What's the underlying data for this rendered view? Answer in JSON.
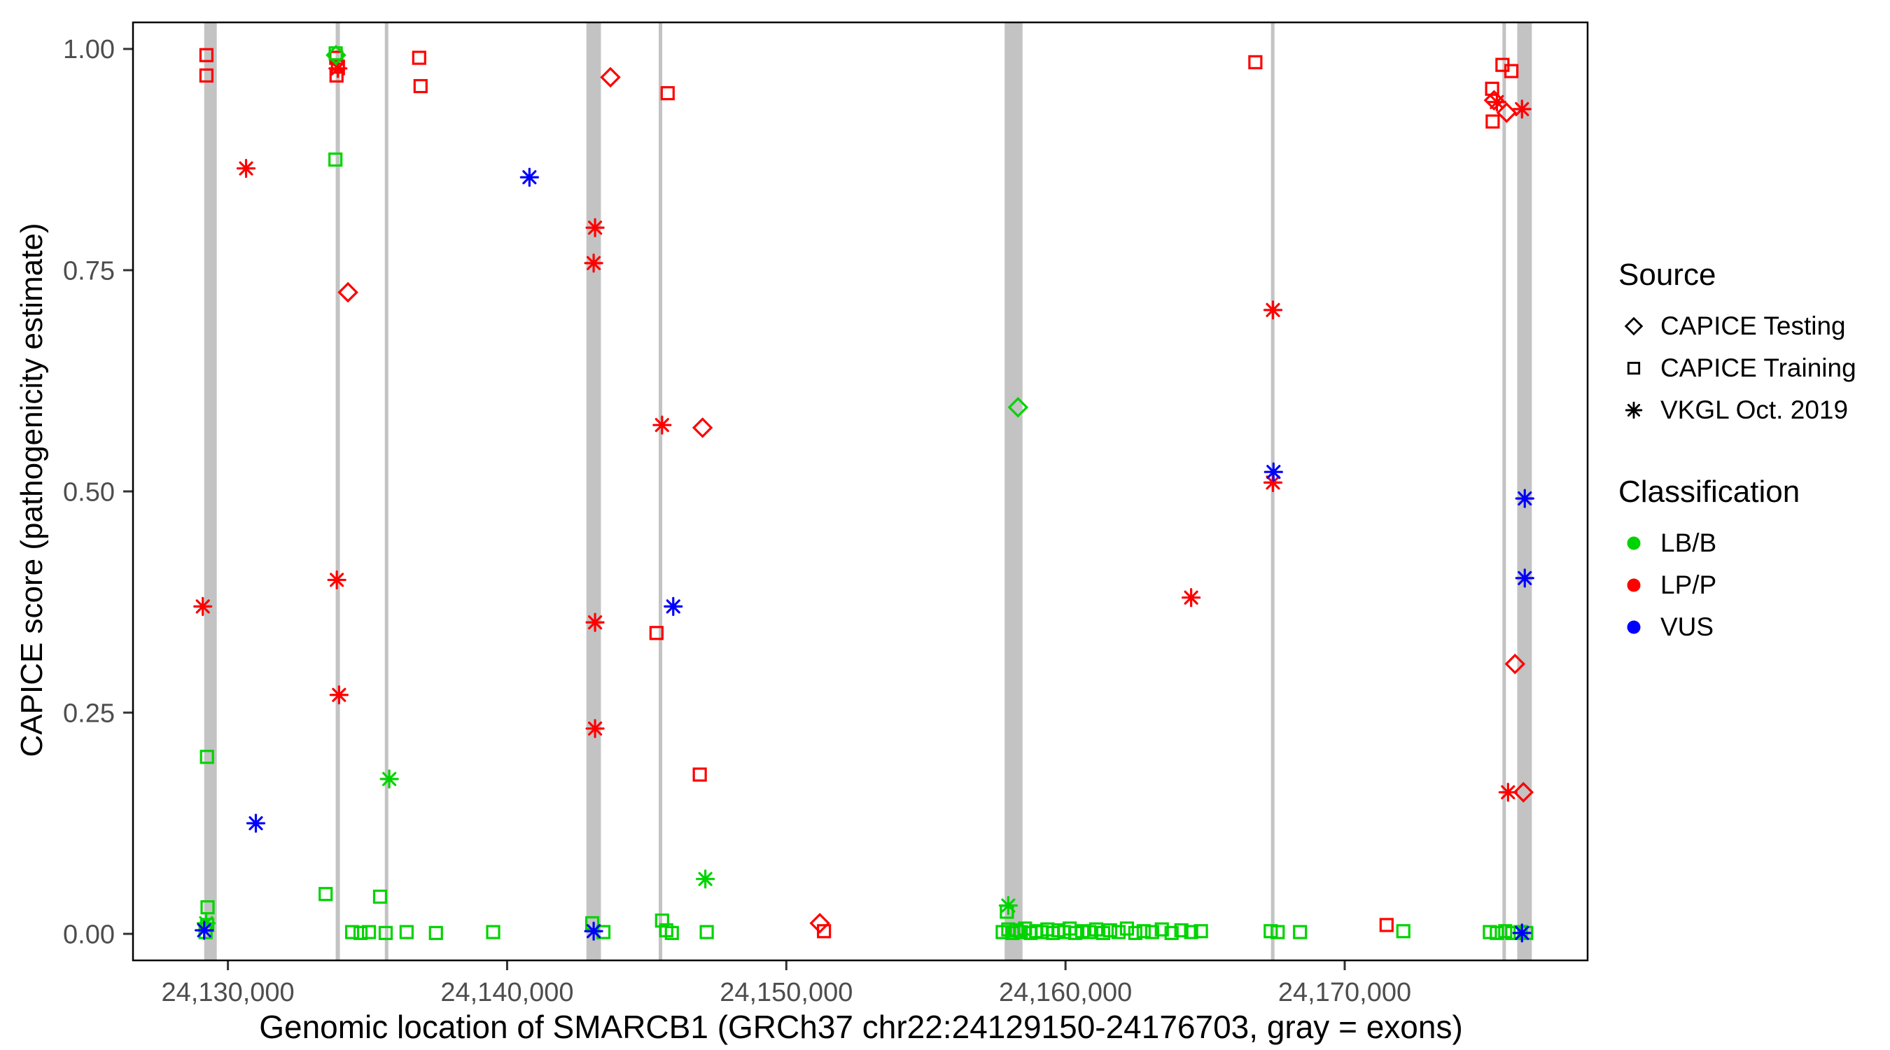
{
  "chart_data": {
    "type": "scatter",
    "title": "",
    "xlabel": "Genomic location of SMARCB1 (GRCh37 chr22:24129150-24176703, gray = exons)",
    "ylabel": "CAPICE score (pathogenicity estimate)",
    "xlim": [
      24126600,
      24178700
    ],
    "ylim": [
      -0.03,
      1.03
    ],
    "grid": false,
    "panel_border_color": "#000000",
    "exon_color": "#c3c3c3",
    "x_ticks": [
      {
        "value": 24130000,
        "label": "24,130,000"
      },
      {
        "value": 24140000,
        "label": "24,140,000"
      },
      {
        "value": 24150000,
        "label": "24,150,000"
      },
      {
        "value": 24160000,
        "label": "24,160,000"
      },
      {
        "value": 24170000,
        "label": "24,170,000"
      }
    ],
    "y_ticks": [
      {
        "value": 0.0,
        "label": "0.00"
      },
      {
        "value": 0.25,
        "label": "0.25"
      },
      {
        "value": 0.5,
        "label": "0.50"
      },
      {
        "value": 0.75,
        "label": "0.75"
      },
      {
        "value": 1.0,
        "label": "1.00"
      }
    ],
    "exons": [
      [
        24129150,
        24129600
      ],
      [
        24133860,
        24134010
      ],
      [
        24135620,
        24135730
      ],
      [
        24142840,
        24143360
      ],
      [
        24145430,
        24145540
      ],
      [
        24157820,
        24158460
      ],
      [
        24167360,
        24167470
      ],
      [
        24175650,
        24175760
      ],
      [
        24176180,
        24176703
      ]
    ],
    "series": [
      {
        "name": "LP/P - CAPICE Testing",
        "classification": "LP/P",
        "source": "CAPICE Testing",
        "shape": "diamond",
        "color": "#ff0000",
        "points": [
          [
            24134300,
            0.725
          ],
          [
            24143700,
            0.968
          ],
          [
            24147000,
            0.572
          ],
          [
            24151200,
            0.012
          ],
          [
            24175350,
            0.942
          ],
          [
            24175800,
            0.928
          ],
          [
            24176100,
            0.305
          ],
          [
            24176400,
            0.16
          ]
        ]
      },
      {
        "name": "LP/P - CAPICE Training",
        "classification": "LP/P",
        "source": "CAPICE Training",
        "shape": "square",
        "color": "#ff0000",
        "points": [
          [
            24129230,
            0.993
          ],
          [
            24129230,
            0.97
          ],
          [
            24133880,
            0.99
          ],
          [
            24133940,
            0.98
          ],
          [
            24133890,
            0.97
          ],
          [
            24136850,
            0.99
          ],
          [
            24136900,
            0.958
          ],
          [
            24145750,
            0.95
          ],
          [
            24145350,
            0.34
          ],
          [
            24146900,
            0.18
          ],
          [
            24151350,
            0.003
          ],
          [
            24166800,
            0.985
          ],
          [
            24171500,
            0.01
          ],
          [
            24175280,
            0.955
          ],
          [
            24175650,
            0.982
          ],
          [
            24175300,
            0.918
          ],
          [
            24175970,
            0.975
          ]
        ]
      },
      {
        "name": "LP/P - VKGL Oct. 2019",
        "classification": "LP/P",
        "source": "VKGL Oct. 2019",
        "shape": "asterisk",
        "color": "#ff0000",
        "points": [
          [
            24130650,
            0.865
          ],
          [
            24129100,
            0.37
          ],
          [
            24133900,
            0.4
          ],
          [
            24133980,
            0.27
          ],
          [
            24133940,
            0.978
          ],
          [
            24143150,
            0.798
          ],
          [
            24143100,
            0.758
          ],
          [
            24143150,
            0.352
          ],
          [
            24143150,
            0.232
          ],
          [
            24145550,
            0.575
          ],
          [
            24164500,
            0.38
          ],
          [
            24167430,
            0.705
          ],
          [
            24167430,
            0.51
          ],
          [
            24175450,
            0.94
          ],
          [
            24176350,
            0.932
          ],
          [
            24175850,
            0.16
          ]
        ]
      },
      {
        "name": "LB/B - CAPICE Testing",
        "classification": "LB/B",
        "source": "CAPICE Testing",
        "shape": "diamond",
        "color": "#00d400",
        "points": [
          [
            24158300,
            0.595
          ],
          [
            24133870,
            0.993
          ]
        ]
      },
      {
        "name": "LB/B - CAPICE Training",
        "classification": "LB/B",
        "source": "CAPICE Training",
        "shape": "square",
        "color": "#00d400",
        "points": [
          [
            24129250,
            0.2
          ],
          [
            24129270,
            0.03
          ],
          [
            24129260,
            0.01
          ],
          [
            24129200,
            0.002
          ],
          [
            24133500,
            0.045
          ],
          [
            24133850,
            0.875
          ],
          [
            24133860,
            0.995
          ],
          [
            24134450,
            0.002
          ],
          [
            24134750,
            0.001
          ],
          [
            24135050,
            0.002
          ],
          [
            24135450,
            0.042
          ],
          [
            24135650,
            0.001
          ],
          [
            24136400,
            0.002
          ],
          [
            24137450,
            0.001
          ],
          [
            24139500,
            0.002
          ],
          [
            24143050,
            0.012
          ],
          [
            24143450,
            0.002
          ],
          [
            24145550,
            0.015
          ],
          [
            24145700,
            0.004
          ],
          [
            24145900,
            0.001
          ],
          [
            24147150,
            0.002
          ],
          [
            24157750,
            0.002
          ],
          [
            24157900,
            0.025
          ],
          [
            24157950,
            0.005
          ],
          [
            24158100,
            0.001
          ],
          [
            24158250,
            0.004
          ],
          [
            24158400,
            0.002
          ],
          [
            24158550,
            0.006
          ],
          [
            24158750,
            0.001
          ],
          [
            24158950,
            0.003
          ],
          [
            24159150,
            0.002
          ],
          [
            24159350,
            0.005
          ],
          [
            24159550,
            0.001
          ],
          [
            24159750,
            0.004
          ],
          [
            24159950,
            0.002
          ],
          [
            24160150,
            0.006
          ],
          [
            24160350,
            0.001
          ],
          [
            24160600,
            0.003
          ],
          [
            24160850,
            0.002
          ],
          [
            24161100,
            0.005
          ],
          [
            24161350,
            0.001
          ],
          [
            24161600,
            0.004
          ],
          [
            24161900,
            0.002
          ],
          [
            24162200,
            0.006
          ],
          [
            24162500,
            0.001
          ],
          [
            24162800,
            0.003
          ],
          [
            24163100,
            0.002
          ],
          [
            24163450,
            0.005
          ],
          [
            24163800,
            0.001
          ],
          [
            24164150,
            0.004
          ],
          [
            24164500,
            0.002
          ],
          [
            24164850,
            0.003
          ],
          [
            24167350,
            0.003
          ],
          [
            24167600,
            0.002
          ],
          [
            24168400,
            0.002
          ],
          [
            24172100,
            0.003
          ],
          [
            24175200,
            0.002
          ],
          [
            24175450,
            0.001
          ],
          [
            24175750,
            0.003
          ],
          [
            24176000,
            0.001
          ],
          [
            24176300,
            0.002
          ],
          [
            24176500,
            0.001
          ]
        ]
      },
      {
        "name": "LB/B - VKGL Oct. 2019",
        "classification": "LB/B",
        "source": "VKGL Oct. 2019",
        "shape": "asterisk",
        "color": "#00d400",
        "points": [
          [
            24129220,
            0.012
          ],
          [
            24135780,
            0.175
          ],
          [
            24147100,
            0.062
          ],
          [
            24157950,
            0.032
          ]
        ]
      },
      {
        "name": "VUS - VKGL Oct. 2019",
        "classification": "VUS",
        "source": "VKGL Oct. 2019",
        "shape": "asterisk",
        "color": "#0000ff",
        "points": [
          [
            24131000,
            0.125
          ],
          [
            24140800,
            0.855
          ],
          [
            24145950,
            0.37
          ],
          [
            24167450,
            0.522
          ],
          [
            24176450,
            0.492
          ],
          [
            24176450,
            0.402
          ],
          [
            24129150,
            0.004
          ],
          [
            24143100,
            0.003
          ],
          [
            24176350,
            0.001
          ]
        ]
      }
    ]
  },
  "legend": {
    "source": {
      "title": "Source",
      "items": [
        {
          "label": "CAPICE Testing",
          "shape": "diamond"
        },
        {
          "label": "CAPICE Training",
          "shape": "square"
        },
        {
          "label": "VKGL Oct. 2019",
          "shape": "asterisk"
        }
      ]
    },
    "classification": {
      "title": "Classification",
      "items": [
        {
          "label": "LB/B",
          "color": "#00d400"
        },
        {
          "label": "LP/P",
          "color": "#ff0000"
        },
        {
          "label": "VUS",
          "color": "#0000ff"
        }
      ]
    }
  },
  "colors": {
    "marker_black": "#000000",
    "tick_label": "#4d4d4d",
    "axis_title": "#000000"
  }
}
